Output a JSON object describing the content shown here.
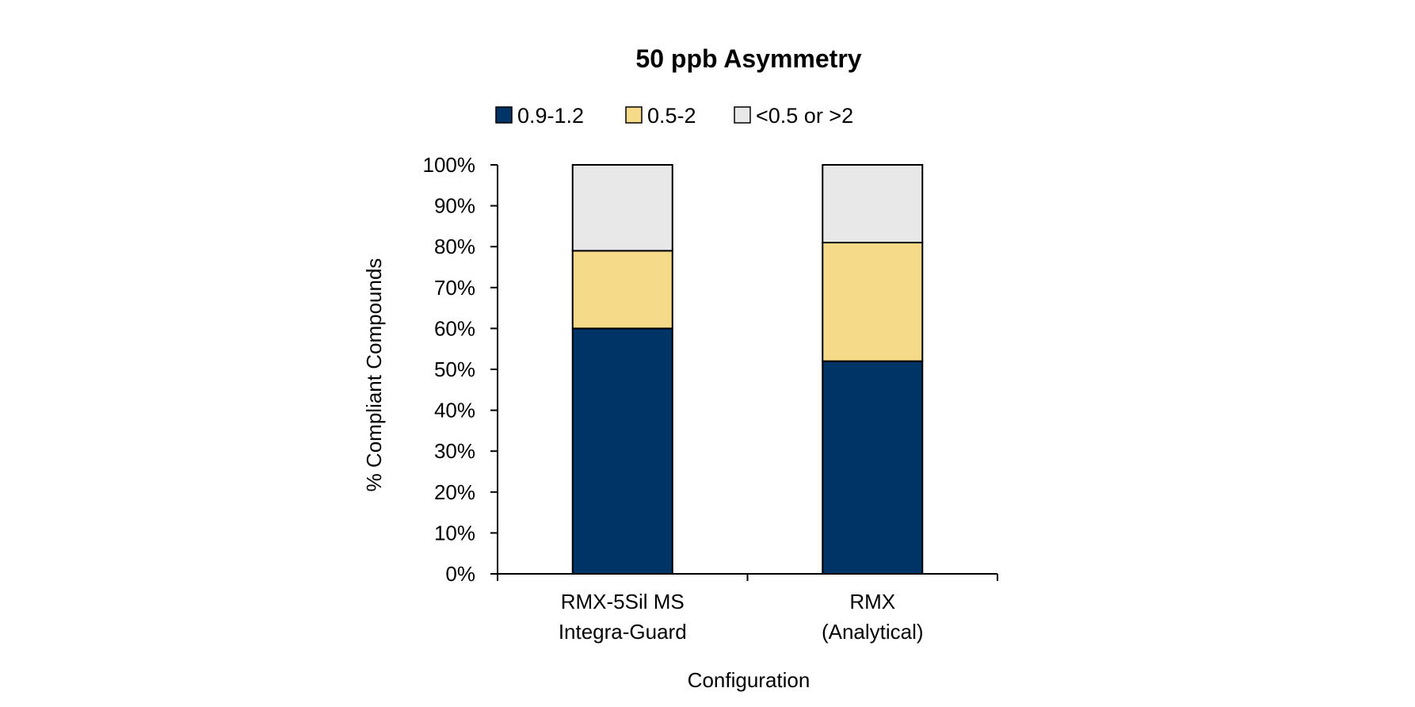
{
  "chart_data": {
    "type": "bar",
    "stacked": true,
    "title": "50 ppb Asymmetry",
    "xlabel": "Configuration",
    "ylabel": "% Compliant Compounds",
    "categories": [
      [
        "RMX-5Sil MS",
        "Integra-Guard"
      ],
      [
        "RMX",
        "(Analytical)"
      ]
    ],
    "series": [
      {
        "name": "0.9-1.2",
        "color": "#003366",
        "values": [
          0.6,
          0.52
        ]
      },
      {
        "name": "0.5-2",
        "color": "#F5DA8A",
        "values": [
          0.19,
          0.29
        ]
      },
      {
        "name": "<0.5 or >2",
        "color": "#E8E8E8",
        "values": [
          0.21,
          0.19
        ]
      }
    ],
    "ylim": [
      0,
      1
    ],
    "yticks": [
      0,
      0.1,
      0.2,
      0.3,
      0.4,
      0.5,
      0.6,
      0.7,
      0.8,
      0.9,
      1.0
    ],
    "ytick_labels": [
      "0%",
      "10%",
      "20%",
      "30%",
      "40%",
      "50%",
      "60%",
      "70%",
      "80%",
      "90%",
      "100%"
    ],
    "legend_position": "top",
    "grid": false
  }
}
